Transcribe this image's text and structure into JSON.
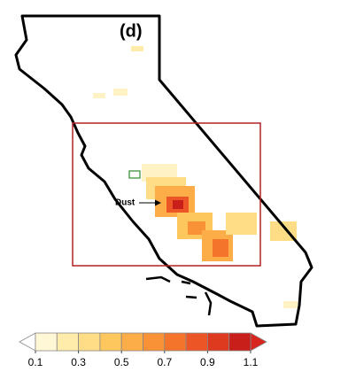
{
  "panel_label": "(d)",
  "annotation": "Dust",
  "colorbar": {
    "lim": [
      0.1,
      1.1
    ],
    "ticks": [
      0.1,
      0.3,
      0.5,
      0.7,
      0.9,
      1.1
    ],
    "colors": [
      "#fff7d6",
      "#ffecaa",
      "#fedd86",
      "#fdc75e",
      "#fcad48",
      "#f99236",
      "#f5742b",
      "#ec5626",
      "#dd3a20",
      "#c91f1a"
    ],
    "under_color": "#ffffff",
    "over_color": "#d7261e"
  }
}
